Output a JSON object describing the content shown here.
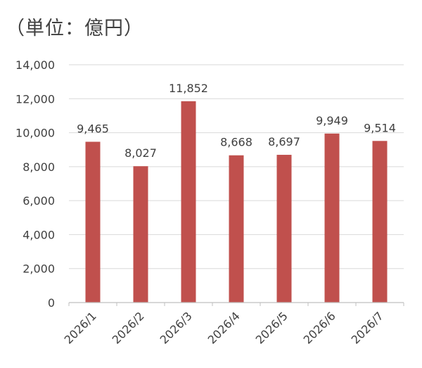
{
  "unit_label": "（単位：億円）",
  "chart_data": {
    "type": "bar",
    "categories": [
      "2026/1",
      "2026/2",
      "2026/3",
      "2026/4",
      "2026/5",
      "2026/6",
      "2026/7"
    ],
    "values": [
      9465,
      8027,
      11852,
      8668,
      8697,
      9949,
      9514
    ],
    "data_labels": [
      "9,465",
      "8,027",
      "11,852",
      "8,668",
      "8,697",
      "9,949",
      "9,514"
    ],
    "y_ticks": [
      "0",
      "2,000",
      "4,000",
      "6,000",
      "8,000",
      "10,000",
      "12,000",
      "14,000"
    ],
    "ylim": [
      0,
      14000
    ],
    "title": "",
    "xlabel": "",
    "ylabel": "",
    "grid": true,
    "legend": "none",
    "colors": {
      "bar": "#c0504d",
      "grid": "#d9d9d9",
      "axis": "#bfbfbf",
      "text": "#404040"
    }
  }
}
